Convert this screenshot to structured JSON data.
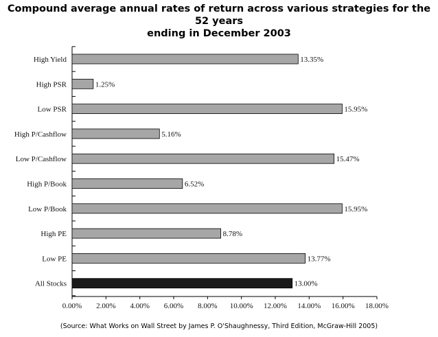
{
  "chart_data": {
    "type": "bar",
    "orientation": "horizontal",
    "title_line1": "Compound average annual rates of return across various strategies for the 52 years",
    "title_line2": "ending in December 2003",
    "categories": [
      "High Yield",
      "High PSR",
      "Low PSR",
      "High P/Cashflow",
      "Low P/Cashflow",
      "High P/Book",
      "Low P/Book",
      "High PE",
      "Low PE",
      "All Stocks"
    ],
    "values": [
      13.35,
      1.25,
      15.95,
      5.16,
      15.47,
      6.52,
      15.95,
      8.78,
      13.77,
      13.0
    ],
    "value_labels": [
      "13.35%",
      "1.25%",
      "15.95%",
      "5.16%",
      "15.47%",
      "6.52%",
      "15.95%",
      "8.78%",
      "13.77%",
      "13.00%"
    ],
    "highlight_category": "All Stocks",
    "xlim": [
      0,
      18
    ],
    "xticks": [
      0,
      2,
      4,
      6,
      8,
      10,
      12,
      14,
      16,
      18
    ],
    "xtick_labels": [
      "0.00%",
      "2.00%",
      "4.00%",
      "6.00%",
      "8.00%",
      "10.00%",
      "12.00%",
      "14.00%",
      "16.00%",
      "18.00%"
    ],
    "xlabel": "",
    "ylabel": "",
    "colors": {
      "bar": "#a6a6a6",
      "highlight": "#1a1a1a",
      "axis": "#000000"
    }
  },
  "source_note": "(Source: What Works on Wall Street by James P. O'Shaughnessy, Third Edition, McGraw-Hill 2005)"
}
